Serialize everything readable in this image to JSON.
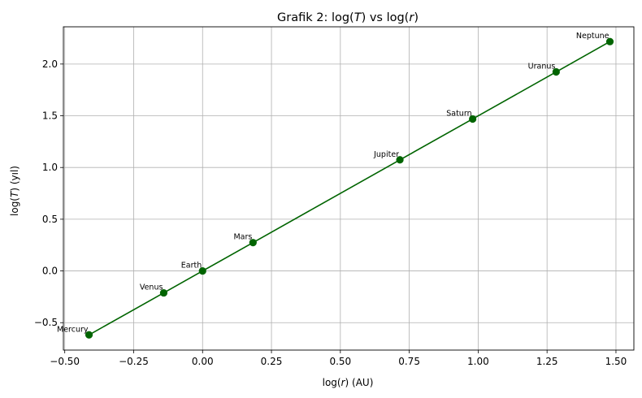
{
  "chart_data": {
    "type": "line",
    "title": {
      "pre": "Grafik 2: log(",
      "var1": "T",
      "mid": ") vs log(",
      "var2": "r",
      "post": ")"
    },
    "xlabel": {
      "pre": "log(",
      "var": "r",
      "post": ") (AU)"
    },
    "ylabel": {
      "pre": "log(",
      "var": "T",
      "post": ") (yıl)"
    },
    "xlim": [
      -0.505,
      1.565
    ],
    "ylim": [
      -0.765,
      2.36
    ],
    "xticks": [
      -0.5,
      -0.25,
      0.0,
      0.25,
      0.5,
      0.75,
      1.0,
      1.25,
      1.5
    ],
    "xtick_labels": [
      "−0.50",
      "−0.25",
      "0.00",
      "0.25",
      "0.50",
      "0.75",
      "1.00",
      "1.25",
      "1.50"
    ],
    "yticks": [
      -0.5,
      0.0,
      0.5,
      1.0,
      1.5,
      2.0
    ],
    "ytick_labels": [
      "−0.5",
      "0.0",
      "0.5",
      "1.0",
      "1.5",
      "2.0"
    ],
    "grid": true,
    "line_color": "#006400",
    "series": [
      {
        "points": [
          {
            "label": "Mercury",
            "x": -0.412,
            "y": -0.618
          },
          {
            "label": "Venus",
            "x": -0.141,
            "y": -0.212
          },
          {
            "label": "Earth",
            "x": 0.0,
            "y": 0.0
          },
          {
            "label": "Mars",
            "x": 0.183,
            "y": 0.274
          },
          {
            "label": "Jupiter",
            "x": 0.716,
            "y": 1.074
          },
          {
            "label": "Saturn",
            "x": 0.98,
            "y": 1.469
          },
          {
            "label": "Uranus",
            "x": 1.283,
            "y": 1.924
          },
          {
            "label": "Neptune",
            "x": 1.478,
            "y": 2.217
          }
        ]
      }
    ]
  }
}
